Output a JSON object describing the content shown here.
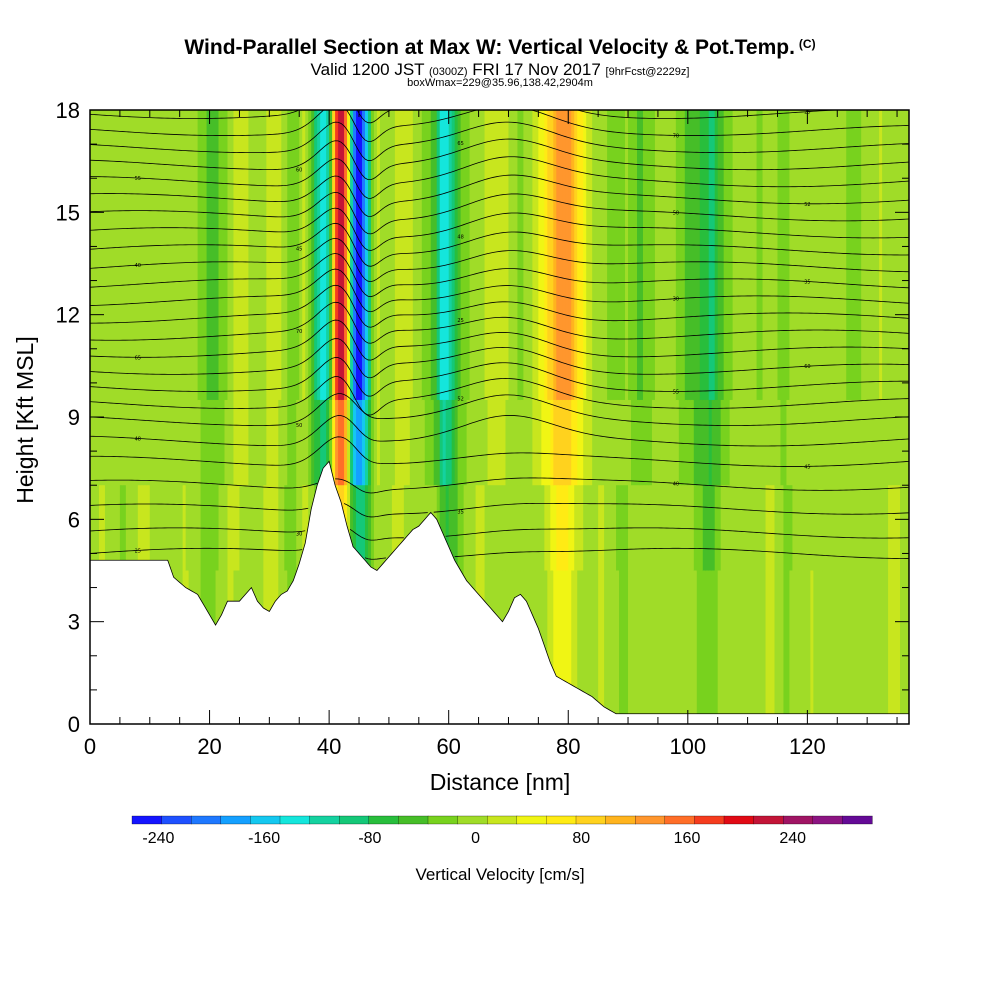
{
  "chart_data": {
    "type": "heatmap",
    "title": "Wind-Parallel Section at Max W: Vertical Velocity & Pot.Temp.",
    "title_mark": "(C)",
    "subtitle_main": "Valid 1200 JST",
    "subtitle_utc": "(0300Z)",
    "subtitle_date": "FRI 17 Nov 2017",
    "subtitle_fcst": "[9hrFcst@2229z]",
    "info": "boxWmax=229@35.96,138.42,2904m",
    "xlabel": "Distance [nm]",
    "ylabel": "Height [Kft MSL]",
    "xlim": [
      0,
      137
    ],
    "ylim": [
      0,
      18
    ],
    "xticks": [
      "0",
      "20",
      "40",
      "60",
      "80",
      "100",
      "120"
    ],
    "yticks": [
      "0",
      "3",
      "6",
      "9",
      "12",
      "15",
      "18"
    ],
    "colorbar": {
      "label": "Vertical Velocity [cm/s]",
      "ticks": [
        "-240",
        "-160",
        "-80",
        "0",
        "80",
        "160",
        "240"
      ],
      "range": [
        -260,
        300
      ],
      "colors": [
        "#1414ff",
        "#1e50ff",
        "#1e78ff",
        "#14a0ff",
        "#14c8f0",
        "#14e6dc",
        "#14d2a0",
        "#14c878",
        "#28be3c",
        "#46be28",
        "#78d21e",
        "#a0dc28",
        "#c8e61e",
        "#f0f514",
        "#ffeb14",
        "#ffd21e",
        "#ffb41e",
        "#ff962d",
        "#ff6e28",
        "#f53c1e",
        "#e10a14",
        "#c31437",
        "#a01464",
        "#8c1482",
        "#640a96"
      ]
    },
    "velocity_profile": {
      "description": "column-wise vertical velocity in cm/s at upper levels",
      "x": [
        0,
        5,
        10,
        14,
        18,
        20,
        22,
        25,
        28,
        31,
        34,
        36,
        38,
        39,
        40,
        41,
        42,
        43,
        44,
        45,
        46,
        47,
        48,
        50,
        52,
        54,
        56,
        58,
        59,
        60,
        61,
        62,
        64,
        66,
        68,
        70,
        72,
        74,
        76,
        78,
        80,
        82,
        84,
        86,
        88,
        90,
        92,
        94,
        96,
        98,
        100,
        102,
        104,
        106,
        108,
        110,
        112,
        114,
        116,
        118,
        120,
        124,
        128,
        132,
        137
      ],
      "w": [
        0,
        -10,
        5,
        -5,
        -10,
        -50,
        -30,
        30,
        -10,
        30,
        -40,
        20,
        -100,
        -150,
        -100,
        150,
        260,
        120,
        -200,
        -260,
        -200,
        -50,
        20,
        -10,
        30,
        10,
        -20,
        -60,
        -150,
        -140,
        -80,
        -30,
        -10,
        10,
        20,
        10,
        -20,
        10,
        50,
        120,
        130,
        60,
        10,
        -10,
        -20,
        -10,
        -40,
        -20,
        10,
        -10,
        -40,
        -60,
        -90,
        -30,
        -10,
        10,
        -20,
        10,
        -30,
        10,
        -10,
        0,
        -20,
        10,
        -10
      ]
    },
    "terrain_height_kft": {
      "x": [
        0,
        13,
        14,
        16,
        18,
        19,
        20,
        21,
        22,
        23,
        25,
        26,
        27,
        28,
        29,
        30,
        31,
        32,
        33,
        34,
        35,
        36,
        37,
        38,
        39,
        40,
        41,
        42,
        43,
        44,
        45,
        46,
        47,
        48,
        49,
        50,
        51,
        52,
        53,
        54,
        55,
        56,
        57,
        58,
        59,
        60,
        61,
        62,
        63,
        64,
        65,
        66,
        67,
        68,
        69,
        70,
        71,
        72,
        73,
        74,
        75,
        76,
        77,
        78,
        80,
        82,
        84,
        86,
        88,
        90,
        95,
        100,
        105,
        110,
        120,
        130,
        137
      ],
      "h": [
        4.8,
        4.8,
        4.3,
        4.0,
        3.8,
        3.5,
        3.2,
        2.9,
        3.2,
        3.6,
        3.6,
        3.8,
        4.0,
        3.6,
        3.4,
        3.3,
        3.6,
        3.8,
        3.9,
        4.2,
        4.7,
        5.3,
        6.3,
        7.0,
        7.5,
        7.7,
        7.0,
        6.5,
        5.8,
        5.2,
        5.0,
        4.8,
        4.6,
        4.5,
        4.7,
        4.9,
        5.1,
        5.3,
        5.5,
        5.7,
        5.8,
        6.0,
        6.2,
        6.0,
        5.6,
        5.2,
        4.8,
        4.5,
        4.2,
        4.0,
        3.8,
        3.6,
        3.4,
        3.2,
        3.0,
        3.3,
        3.7,
        3.8,
        3.6,
        3.2,
        2.8,
        2.3,
        1.8,
        1.4,
        1.2,
        1.0,
        0.8,
        0.5,
        0.3,
        0.3,
        0.3,
        0.3,
        0.3,
        0.3,
        0.3,
        0.3,
        0.3
      ]
    },
    "isentropes_base_kft": [
      5.0,
      5.6,
      6.3,
      7.0,
      7.7,
      8.3,
      8.9,
      9.4,
      9.9,
      10.4,
      10.9,
      11.4,
      11.9,
      12.4,
      12.9,
      13.4,
      13.9,
      14.4,
      14.9,
      15.4,
      15.9,
      16.4,
      16.9,
      17.4,
      17.9
    ],
    "contour_labels": [
      "25",
      "30",
      "35",
      "40",
      "45",
      "48",
      "50",
      "52",
      "55",
      "60",
      "65",
      "70"
    ]
  }
}
